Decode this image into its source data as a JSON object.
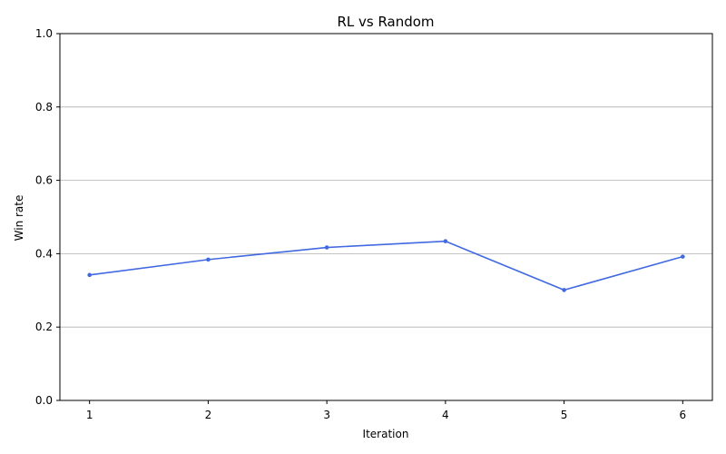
{
  "chart_data": {
    "type": "line",
    "title": "RL vs Random",
    "xlabel": "Iteration",
    "ylabel": "Win rate",
    "x": [
      1,
      2,
      3,
      4,
      5,
      6
    ],
    "series": [
      {
        "values": [
          0.342,
          0.384,
          0.417,
          0.434,
          0.301,
          0.392
        ]
      }
    ],
    "xticks": [
      "1",
      "2",
      "3",
      "4",
      "5",
      "6"
    ],
    "yticks": [
      "0.0",
      "0.2",
      "0.4",
      "0.6",
      "0.8",
      "1.0"
    ],
    "xlim": [
      0.75,
      6.25
    ],
    "ylim": [
      0,
      1
    ],
    "grid": "horizontal",
    "legend": "none",
    "colors": {
      "line": "#4169e1",
      "grid": "#b0b0b0",
      "axis": "#000000"
    }
  }
}
